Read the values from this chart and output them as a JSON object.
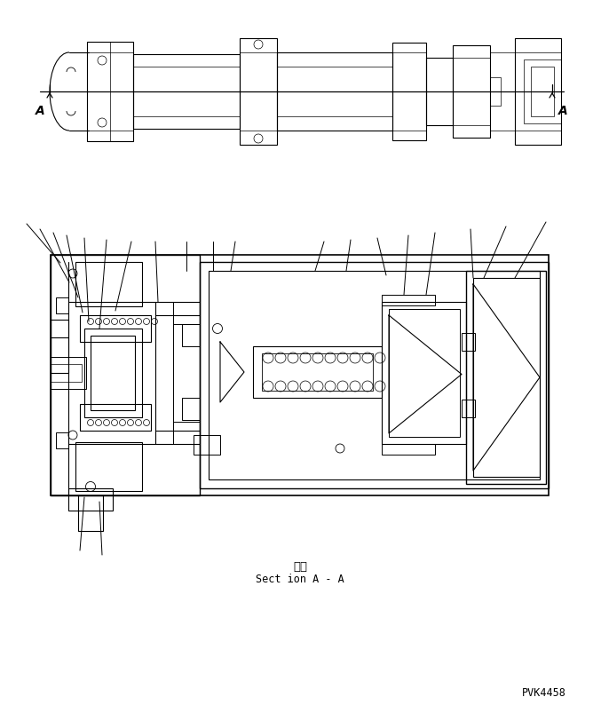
{
  "section_label_jp": "断面",
  "section_label_en": "Sect ion A - A",
  "part_number": "PVK4458",
  "bg_color": "#ffffff",
  "line_color": "#000000",
  "fig_width": 6.77,
  "fig_height": 7.94
}
